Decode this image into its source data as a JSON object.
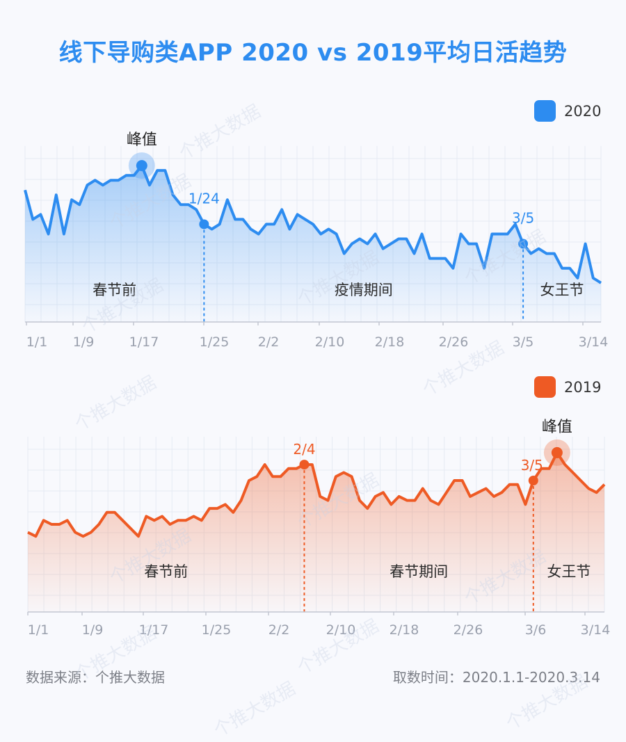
{
  "title": "线下导购类APP 2020 vs 2019平均日活趋势",
  "footer": {
    "source": "数据来源：个推大数据",
    "time": "取数时间：2020.1.1-2020.3.14"
  },
  "watermark": "个推大数据",
  "colors": {
    "blue": "#2d8cf0",
    "orange": "#ee5a24",
    "axis": "#c2c6d1",
    "tick_label": "#9aa0ad",
    "grid": "#e6ebf3"
  },
  "chart_data": [
    {
      "type": "area",
      "legend": "2020",
      "color": "#2d8cf0",
      "x_ticks": [
        "1/1",
        "1/9",
        "1/17",
        "1/25",
        "2/2",
        "2/10",
        "2/18",
        "2/26",
        "3/5",
        "3/14"
      ],
      "series": [
        {
          "name": "2020",
          "values": [
            77,
            71,
            72,
            68,
            76,
            68,
            75,
            74,
            78,
            79,
            78,
            79,
            79,
            80,
            80,
            82,
            78,
            81,
            81,
            76,
            74,
            74,
            73,
            70,
            69,
            70,
            75,
            71,
            71,
            69,
            68,
            70,
            70,
            73,
            69,
            72,
            71,
            70,
            68,
            69,
            68,
            64,
            66,
            67,
            66,
            68,
            65,
            66,
            67,
            67,
            64,
            68,
            63,
            63,
            63,
            61,
            68,
            66,
            66,
            61,
            68,
            68,
            68,
            70,
            66,
            64,
            65,
            64,
            64,
            61,
            61,
            59,
            66,
            59,
            58
          ]
        }
      ],
      "annotations": [
        {
          "label": "峰值",
          "index": 15,
          "type": "peak"
        },
        {
          "label": "1/24",
          "index": 23,
          "type": "marker"
        },
        {
          "label": "3/5",
          "index": 64,
          "type": "marker"
        }
      ],
      "regions": [
        {
          "label": "春节前",
          "from": 0,
          "to": 23
        },
        {
          "label": "疫情期间",
          "from": 23,
          "to": 64
        },
        {
          "label": "女王节",
          "from": 64,
          "to": 74
        }
      ]
    },
    {
      "type": "area",
      "legend": "2019",
      "color": "#ee5a24",
      "x_ticks": [
        "1/1",
        "1/9",
        "1/17",
        "1/25",
        "2/2",
        "2/10",
        "2/18",
        "2/26",
        "3/6",
        "3/14"
      ],
      "series": [
        {
          "name": "2019",
          "values": [
            60,
            59,
            63,
            62,
            62,
            63,
            60,
            59,
            60,
            62,
            65,
            65,
            63,
            61,
            59,
            64,
            63,
            64,
            62,
            63,
            63,
            64,
            63,
            66,
            66,
            67,
            65,
            68,
            73,
            74,
            77,
            74,
            74,
            76,
            76,
            77,
            77,
            69,
            68,
            74,
            75,
            74,
            68,
            66,
            69,
            70,
            67,
            69,
            68,
            68,
            71,
            68,
            67,
            70,
            73,
            73,
            69,
            70,
            71,
            69,
            70,
            72,
            72,
            67,
            73,
            76,
            76,
            80,
            77,
            75,
            73,
            71,
            70,
            72
          ]
        }
      ],
      "annotations": [
        {
          "label": "2/4",
          "index": 35,
          "type": "marker"
        },
        {
          "label": "3/5",
          "index": 64,
          "type": "marker"
        },
        {
          "label": "峰值",
          "index": 67,
          "type": "peak"
        }
      ],
      "regions": [
        {
          "label": "春节前",
          "from": 0,
          "to": 35
        },
        {
          "label": "春节期间",
          "from": 35,
          "to": 64
        },
        {
          "label": "女王节",
          "from": 64,
          "to": 73
        }
      ]
    }
  ]
}
